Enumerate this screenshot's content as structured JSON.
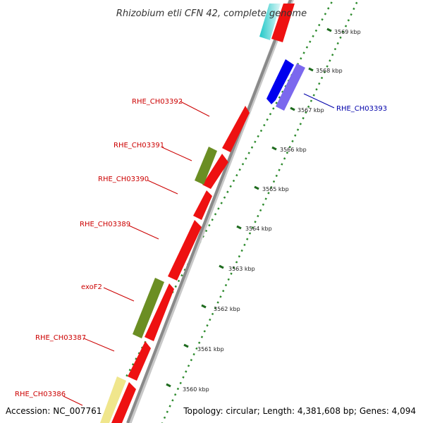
{
  "title": "Rhizobium etli CFN 42, complete genome",
  "footer": {
    "accession": "Accession: NC_007761",
    "summary": "Topology: circular; Length: 4,381,608 bp; Genes: 4,094"
  },
  "scale_labels": [
    "3569 kbp",
    "3568 kbp",
    "3567 kbp",
    "3566 kbp",
    "3565 kbp",
    "3564 kbp",
    "3563 kbp",
    "3562 kbp",
    "3561 kbp",
    "3560 kbp"
  ],
  "gene_labels": [
    {
      "text": "RHE_CH03393",
      "color": "#0000aa"
    },
    {
      "text": "RHE_CH03392",
      "color": "#cc0000"
    },
    {
      "text": "RHE_CH03391",
      "color": "#cc0000"
    },
    {
      "text": "RHE_CH03390",
      "color": "#cc0000"
    },
    {
      "text": "RHE_CH03389",
      "color": "#cc0000"
    },
    {
      "text": "exoF2",
      "color": "#cc0000"
    },
    {
      "text": "RHE_CH03387",
      "color": "#cc0000"
    },
    {
      "text": "RHE_CH03386",
      "color": "#cc0000"
    }
  ],
  "colors": {
    "backbone": "#8a8a8a",
    "dotted_track": "#2e8b2e",
    "red_gene": "#ee1111",
    "green_gene": "#6b8e23",
    "blue_gene": "#0000ee",
    "purple_gene": "#7b68ee",
    "cyan_gene": "#20c8c8",
    "yellow_gene": "#f0e68c"
  }
}
